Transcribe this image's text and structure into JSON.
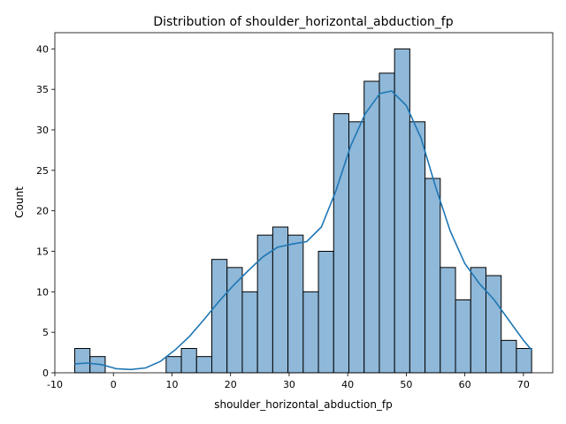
{
  "chart_data": {
    "type": "bar",
    "title": "Distribution of shoulder_horizontal_abduction_fp",
    "xlabel": "shoulder_horizontal_abduction_fp",
    "ylabel": "Count",
    "xlim": [
      -10,
      75
    ],
    "ylim": [
      0,
      42
    ],
    "x_ticks": [
      -10,
      0,
      10,
      20,
      30,
      40,
      50,
      60,
      70
    ],
    "y_ticks": [
      0,
      5,
      10,
      15,
      20,
      25,
      30,
      35,
      40
    ],
    "grid": false,
    "bins": {
      "edges": [
        -6.6,
        -4.0,
        -1.4,
        1.2,
        3.8,
        6.4,
        9.0,
        11.6,
        14.2,
        16.8,
        19.4,
        22.0,
        24.6,
        27.2,
        29.8,
        32.4,
        35.0,
        37.6,
        40.2,
        42.8,
        45.4,
        48.0,
        50.6,
        53.2,
        55.8,
        58.4,
        61.0,
        63.6,
        66.2,
        68.8,
        71.4
      ],
      "counts": [
        3,
        2,
        0,
        0,
        0,
        0,
        2,
        3,
        2,
        14,
        13,
        10,
        17,
        18,
        17,
        10,
        15,
        32,
        31,
        36,
        37,
        40,
        31,
        24,
        13,
        9,
        13,
        12,
        4,
        3
      ]
    },
    "kde": {
      "x": [
        -6.6,
        -4.5,
        -2.0,
        0.5,
        3.0,
        5.5,
        8.0,
        10.5,
        13.0,
        15.5,
        18.0,
        20.5,
        23.0,
        25.5,
        28.0,
        30.5,
        33.0,
        35.5,
        38.0,
        40.5,
        43.0,
        45.5,
        47.5,
        50.0,
        52.5,
        55.0,
        57.5,
        60.0,
        62.5,
        65.0,
        67.5,
        70.0,
        71.4
      ],
      "y": [
        1.1,
        1.2,
        1.0,
        0.5,
        0.4,
        0.6,
        1.4,
        2.8,
        4.5,
        6.6,
        8.8,
        10.8,
        12.6,
        14.3,
        15.5,
        15.9,
        16.2,
        18.0,
        22.5,
        28.0,
        32.0,
        34.5,
        34.8,
        33.0,
        29.0,
        23.0,
        17.5,
        13.5,
        11.0,
        9.0,
        6.5,
        4.0,
        2.8
      ]
    },
    "colors": {
      "bar_fill": "#8fb8d9",
      "bar_edge": "#000000",
      "kde_line": "#1f77b4"
    }
  }
}
